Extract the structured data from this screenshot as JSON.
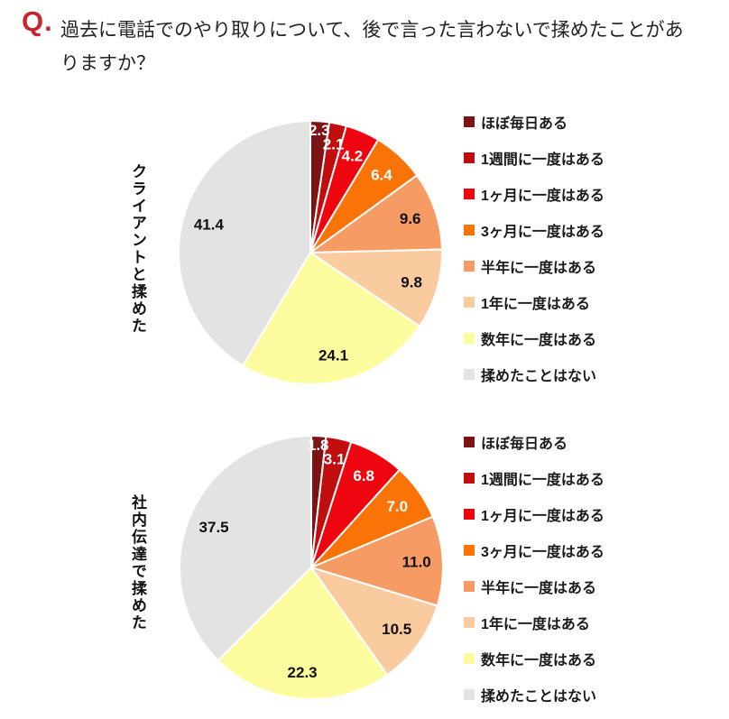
{
  "question": {
    "prefix": "Q.",
    "line1": "過去に電話でのやり取りについて、後で言った言わないで揉めたことがあ",
    "line2": "りますか？",
    "accent_color": "#C9252B"
  },
  "chart_data": [
    {
      "type": "pie",
      "title": "クライアントと揉めた",
      "categories": [
        "ほぼ毎日ある",
        "1週間に一度はある",
        "1ヶ月に一度はある",
        "3ヶ月に一度はある",
        "半年に一度はある",
        "1年に一度はある",
        "数年に一度はある",
        "揉めたことはない"
      ],
      "values": [
        2.3,
        2.1,
        4.2,
        6.4,
        9.6,
        9.8,
        24.1,
        41.4
      ],
      "colors": [
        "#7E1315",
        "#C00D0D",
        "#EE0510",
        "#F97306",
        "#F59B63",
        "#F9CB9E",
        "#FCFC9E",
        "#E3E3E3"
      ],
      "start_angle_deg": 0,
      "direction": "clockwise",
      "legend_position": "right",
      "slice_label_white_count": 4,
      "slice_label_dark_color": "#111111"
    },
    {
      "type": "pie",
      "title": "社内伝達で揉めた",
      "categories": [
        "ほぼ毎日ある",
        "1週間に一度はある",
        "1ヶ月に一度はある",
        "3ヶ月に一度はある",
        "半年に一度はある",
        "1年に一度はある",
        "数年に一度はある",
        "揉めたことはない"
      ],
      "values": [
        1.8,
        3.1,
        6.8,
        7.0,
        11.0,
        10.5,
        22.3,
        37.5
      ],
      "colors": [
        "#7E1315",
        "#C00D0D",
        "#EE0510",
        "#F97306",
        "#F59B63",
        "#F9CB9E",
        "#FCFC9E",
        "#E3E3E3"
      ],
      "start_angle_deg": 0,
      "direction": "clockwise",
      "legend_position": "right",
      "slice_label_white_count": 4,
      "slice_label_dark_color": "#111111"
    }
  ]
}
